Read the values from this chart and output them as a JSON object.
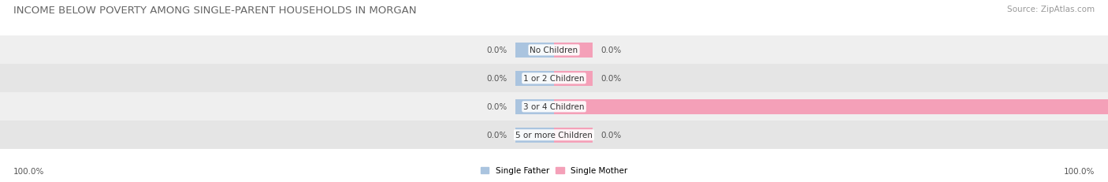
{
  "title": "INCOME BELOW POVERTY AMONG SINGLE-PARENT HOUSEHOLDS IN MORGAN",
  "source": "Source: ZipAtlas.com",
  "categories": [
    "No Children",
    "1 or 2 Children",
    "3 or 4 Children",
    "5 or more Children"
  ],
  "father_values": [
    0.0,
    0.0,
    0.0,
    0.0
  ],
  "mother_values": [
    0.0,
    0.0,
    100.0,
    0.0
  ],
  "father_color": "#aac4df",
  "mother_color": "#f4a0b8",
  "row_colors": [
    "#efefef",
    "#e5e5e5",
    "#efefef",
    "#e5e5e5"
  ],
  "father_label": "Single Father",
  "mother_label": "Single Mother",
  "title_fontsize": 9.5,
  "source_fontsize": 7.5,
  "label_fontsize": 7.5,
  "cat_fontsize": 7.5,
  "val_fontsize": 7.5,
  "axis_label_left": "100.0%",
  "axis_label_right": "100.0%",
  "max_value": 100.0,
  "stub_size": 7.0,
  "background_color": "#ffffff",
  "bar_height": 0.52
}
